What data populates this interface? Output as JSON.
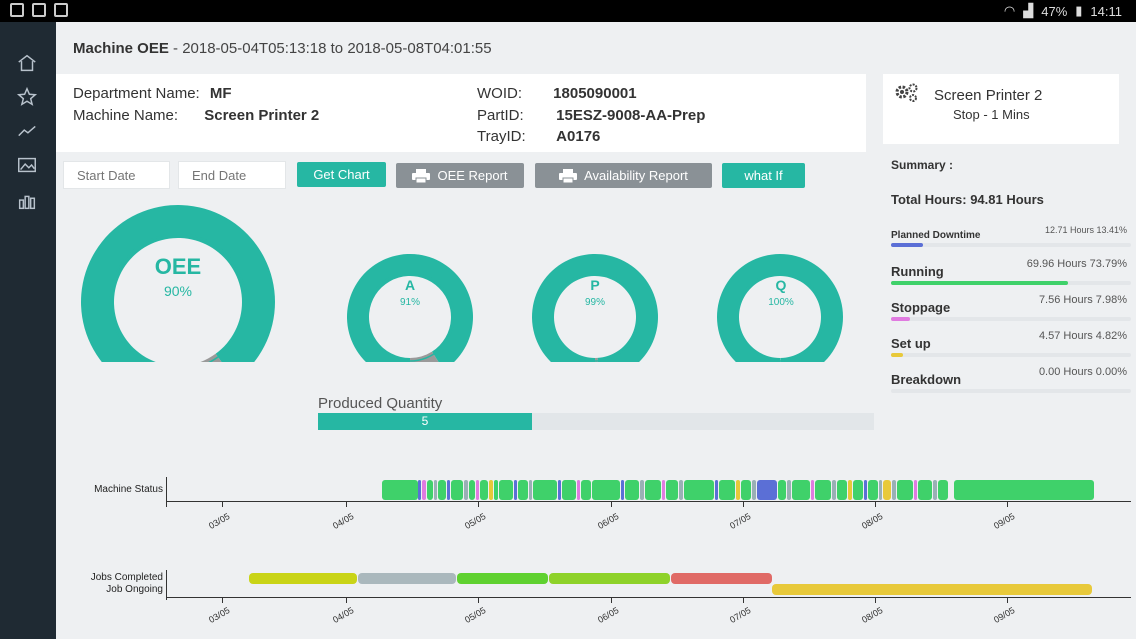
{
  "statusbar": {
    "battery": "47%",
    "time": "14:11"
  },
  "header": {
    "title_bold": "Machine OEE",
    "title_range": " - 2018-05-04T05:13:18 to 2018-05-08T04:01:55"
  },
  "info": {
    "department_label": "Department Name:",
    "department_value": "MF",
    "machine_label": "Machine Name:",
    "machine_value": "Screen Printer 2",
    "woid_label": "WOID:",
    "woid_value": "1805090001",
    "partid_label": "PartID:",
    "partid_value": "15ESZ-9008-AA-Prep",
    "trayid_label": "TrayID:",
    "trayid_value": "A0176"
  },
  "status_card": {
    "machine": "Screen Printer 2",
    "state": "Stop - 1 Mins"
  },
  "controls": {
    "start_placeholder": "Start Date",
    "end_placeholder": "End Date",
    "get_chart": "Get Chart",
    "oee_report": "OEE Report",
    "availability_report": "Availability Report",
    "what_if": "what If"
  },
  "gauges": [
    {
      "name": "OEE",
      "value": "90%",
      "fraction": 0.9
    },
    {
      "name": "A",
      "value": "91%",
      "fraction": 0.91
    },
    {
      "name": "P",
      "value": "99%",
      "fraction": 0.99
    },
    {
      "name": "Q",
      "value": "100%",
      "fraction": 1.0
    }
  ],
  "summary": {
    "title": "Summary :",
    "total": "Total Hours: 94.81 Hours",
    "items": [
      {
        "name": "Planned Downtime",
        "value": "12.71 Hours 13.41%",
        "fraction": 0.1341,
        "color": "#5b6fd6"
      },
      {
        "name": "Running",
        "value": "69.96 Hours 73.79%",
        "fraction": 0.7379,
        "color": "#3fd16a"
      },
      {
        "name": "Stoppage",
        "value": "7.56 Hours 7.98%",
        "fraction": 0.0798,
        "color": "#e07be0"
      },
      {
        "name": "Set up",
        "value": "4.57 Hours 4.82%",
        "fraction": 0.0482,
        "color": "#e8c93a"
      },
      {
        "name": "Breakdown",
        "value": "0.00 Hours 0.00%",
        "fraction": 0.0,
        "color": "#e05a5a"
      }
    ]
  },
  "produced": {
    "label": "Produced Quantity",
    "value": "5",
    "fraction": 0.385
  },
  "timeline": {
    "machine_status_label": "Machine Status",
    "jobs_completed_label": "Jobs Completed",
    "job_ongoing_label": "Job Ongoing",
    "dates": [
      "03/05",
      "04/05",
      "05/05",
      "06/05",
      "07/05",
      "08/05",
      "09/05"
    ]
  },
  "colors": {
    "accent": "#26b7a3",
    "sidebar": "#1f2a33"
  }
}
